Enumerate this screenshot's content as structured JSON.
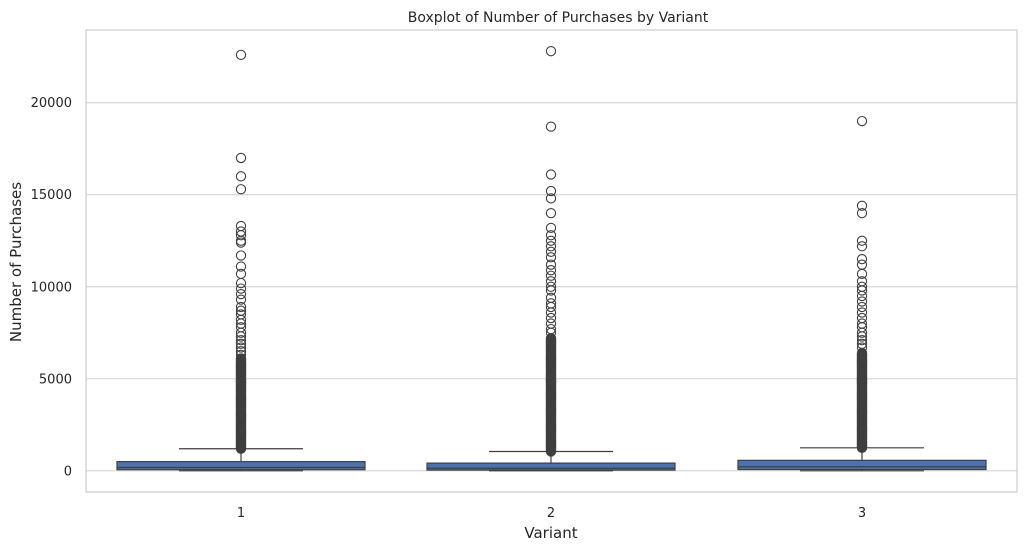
{
  "chart_data": {
    "type": "boxplot",
    "title": "Boxplot of Number of Purchases by Variant",
    "xlabel": "Variant",
    "ylabel": "Number of Purchases",
    "categories": [
      "1",
      "2",
      "3"
    ],
    "ylim": [
      -1150,
      23950
    ],
    "yticks": [
      0,
      5000,
      10000,
      15000,
      20000
    ],
    "ytick_labels": [
      "0",
      "5000",
      "10000",
      "15000",
      "20000"
    ],
    "grid": true,
    "box_color": "#4c72b0",
    "line_color": "#3f3f3f",
    "grid_color": "#d6d6d6",
    "boxes": [
      {
        "category": "1",
        "min": 0,
        "q1": 60,
        "median": 180,
        "q3": 500,
        "whisker_low": 0,
        "whisker_high": 1200,
        "outlier_band": [
          1200,
          6100
        ],
        "outliers": [
          22600,
          17000,
          16000,
          15300,
          13300,
          13000,
          12800,
          12500,
          12400,
          11700,
          11100,
          10700,
          10200,
          9900,
          9600,
          9300,
          8900,
          8700,
          8500,
          8200,
          8000,
          7800,
          7500,
          7300,
          7100,
          6900,
          6700,
          6500,
          6300,
          6100
        ]
      },
      {
        "category": "2",
        "min": 0,
        "q1": 40,
        "median": 140,
        "q3": 420,
        "whisker_low": 0,
        "whisker_high": 1050,
        "outlier_band": [
          1050,
          7200
        ],
        "outliers": [
          22800,
          18700,
          16100,
          15200,
          14800,
          14000,
          13200,
          12800,
          12500,
          12200,
          11900,
          11600,
          11200,
          10900,
          10600,
          10300,
          10000,
          9800,
          9400,
          9100,
          8900,
          8600,
          8300,
          8000,
          7700,
          7500,
          7200
        ]
      },
      {
        "category": "3",
        "min": 0,
        "q1": 70,
        "median": 220,
        "q3": 570,
        "whisker_low": 0,
        "whisker_high": 1250,
        "outlier_band": [
          1250,
          6400
        ],
        "outliers": [
          19000,
          14400,
          14000,
          12500,
          12200,
          11500,
          11200,
          10700,
          10300,
          10000,
          9800,
          9500,
          9200,
          8900,
          8600,
          8300,
          8000,
          7800,
          7500,
          7300,
          7100,
          6900,
          6700,
          6400
        ]
      }
    ]
  }
}
